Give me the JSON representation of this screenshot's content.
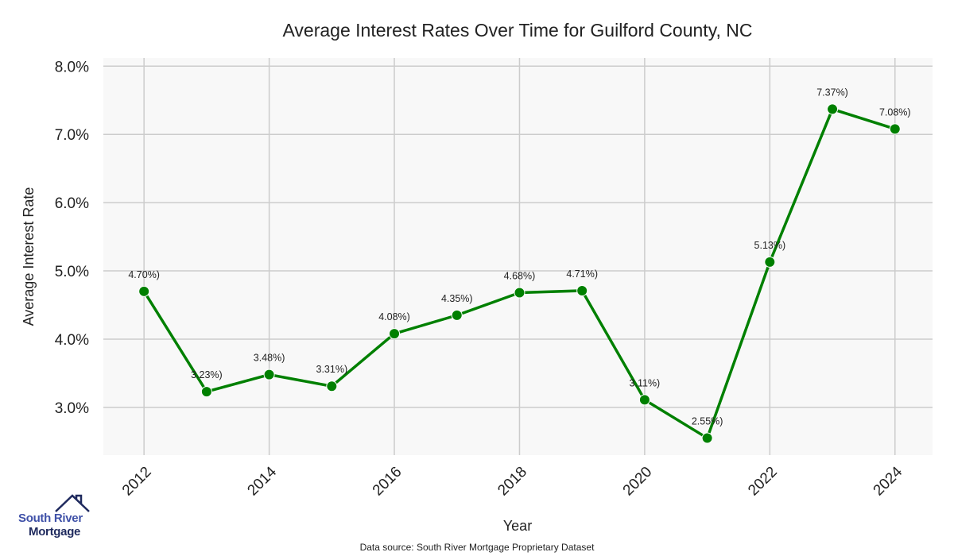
{
  "chart_data": {
    "type": "line",
    "title": "Average Interest Rates Over Time for Guilford County, NC",
    "xlabel": "Year",
    "ylabel": "Average Interest Rate",
    "x": [
      2012,
      2013,
      2014,
      2015,
      2016,
      2017,
      2018,
      2019,
      2020,
      2021,
      2022,
      2023,
      2024
    ],
    "values": [
      4.7,
      3.23,
      3.48,
      3.31,
      4.08,
      4.35,
      4.68,
      4.71,
      3.11,
      2.55,
      5.13,
      7.37,
      7.08
    ],
    "data_labels": [
      "4.70%)",
      "3.23%)",
      "3.48%)",
      "3.31%)",
      "4.08%)",
      "4.35%)",
      "4.68%)",
      "4.71%)",
      "3.11%)",
      "2.55%)",
      "5.13%)",
      "7.37%)",
      "7.08%)"
    ],
    "xticks": [
      "2012",
      "2014",
      "2016",
      "2018",
      "2020",
      "2022",
      "2024"
    ],
    "yticks": [
      "3.0%",
      "4.0%",
      "5.0%",
      "6.0%",
      "7.0%",
      "8.0%"
    ],
    "ylim": [
      2.3,
      8.12
    ],
    "xlim": [
      2011.35,
      2024.6
    ],
    "grid": true,
    "line_color": "#008000",
    "background": "#f8f8f8"
  },
  "footer": {
    "source": "Data source: South River Mortgage Proprietary Dataset"
  },
  "logo": {
    "line1": "South River",
    "line2": "Mortgage"
  }
}
